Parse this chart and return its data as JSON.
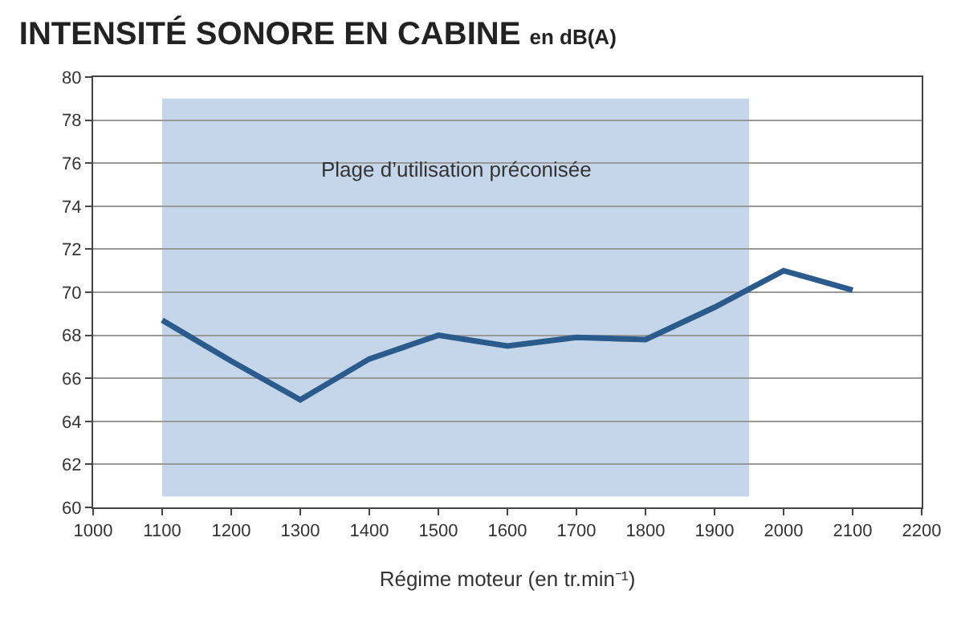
{
  "chart_data": {
    "type": "line",
    "title": "INTENSITÉ SONORE EN CABINE",
    "subtitle": "en dB(A)",
    "xlabel": "Régime moteur (en tr.min⁻¹)",
    "x": [
      1100,
      1200,
      1300,
      1400,
      1500,
      1600,
      1700,
      1800,
      1900,
      2000,
      2100
    ],
    "series": [
      {
        "color": "#2b5b8c",
        "values": [
          68.7,
          66.8,
          65.0,
          66.9,
          68.0,
          67.5,
          67.9,
          67.8,
          69.3,
          71.0,
          70.1
        ]
      }
    ],
    "xlim": [
      1000,
      2200
    ],
    "xticks": [
      1000,
      1100,
      1200,
      1300,
      1400,
      1500,
      1600,
      1700,
      1800,
      1900,
      2000,
      2100,
      2200
    ],
    "ylim": [
      60,
      80
    ],
    "yticks": [
      60,
      62,
      64,
      66,
      68,
      70,
      72,
      74,
      76,
      78,
      80
    ],
    "bands": [
      {
        "axis": "x",
        "from": 1100,
        "to": 1950,
        "label": "Plage d’utilisation préconisée",
        "color": "#c5d6ea"
      }
    ],
    "grid": "y",
    "marker": "none",
    "line_style": "solid"
  }
}
